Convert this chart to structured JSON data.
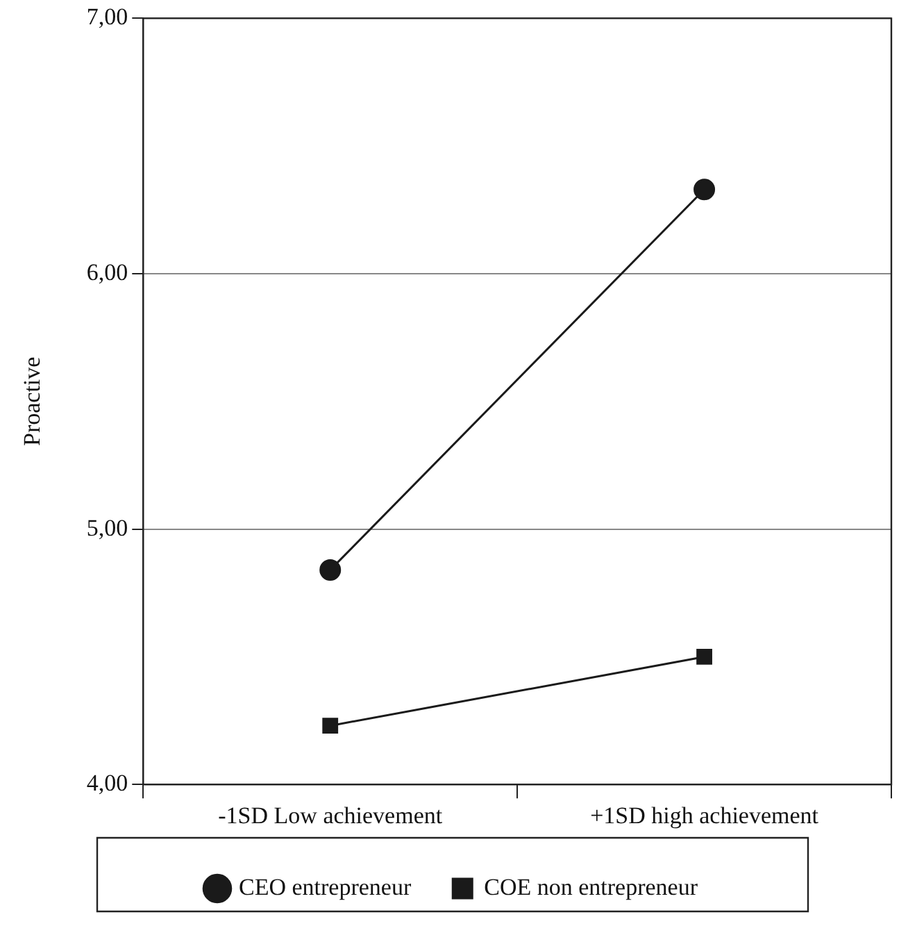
{
  "chart_data": {
    "type": "line",
    "ylabel": "Proactive",
    "categories": [
      "-1SD Low achievement",
      "+1SD high achievement"
    ],
    "series": [
      {
        "name": "CEO entrepreneur",
        "color": "#1a1a1a",
        "marker": "circle",
        "values": [
          4.84,
          6.33
        ]
      },
      {
        "name": "COE non entrepreneur",
        "color": "#1a1a1a",
        "marker": "square",
        "values": [
          4.23,
          4.5
        ]
      }
    ],
    "ylim": [
      4,
      7
    ],
    "yticks": [
      {
        "value": 4,
        "label": "4,00"
      },
      {
        "value": 5,
        "label": "5,00"
      },
      {
        "value": 6,
        "label": "6,00"
      },
      {
        "value": 7,
        "label": "7,00"
      }
    ],
    "grid": "y",
    "legend": "bottom",
    "line_style": "solid"
  }
}
